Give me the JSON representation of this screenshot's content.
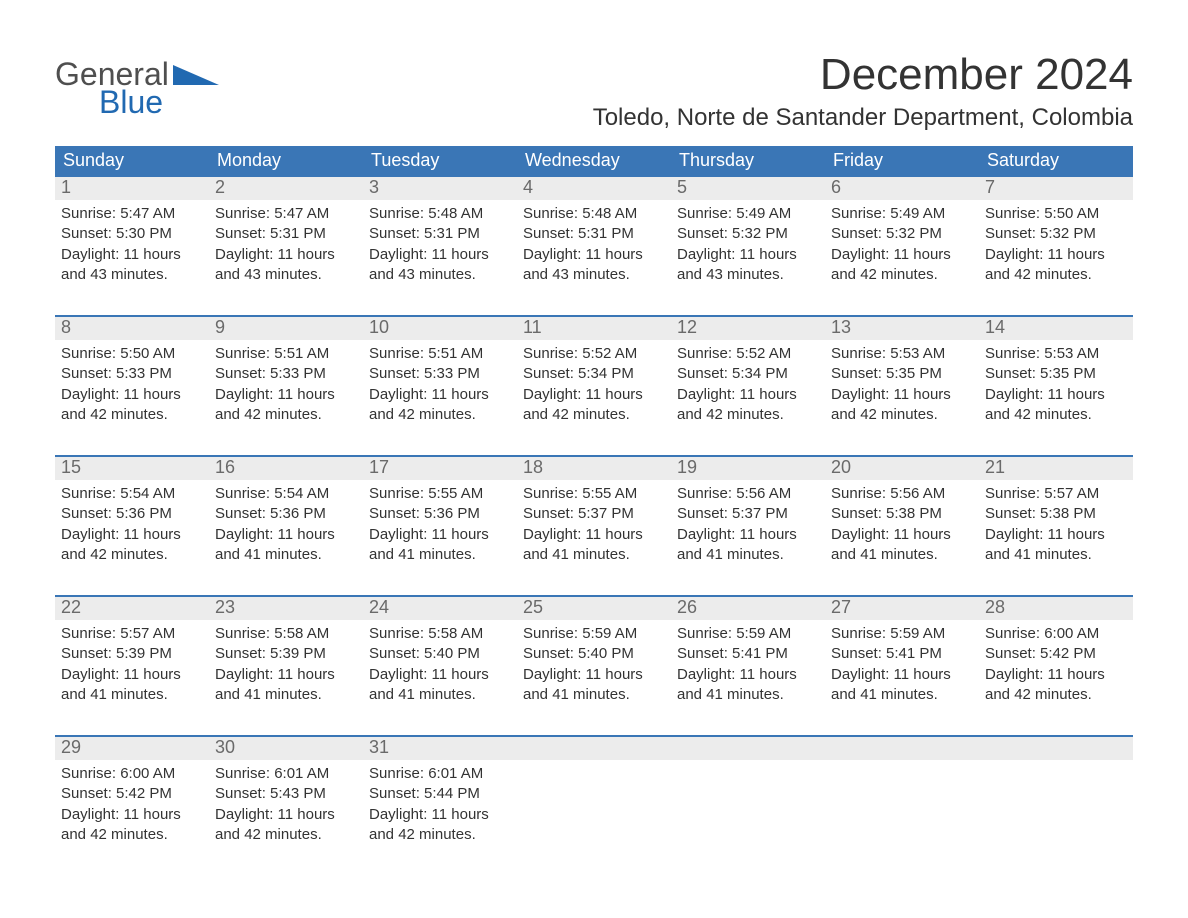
{
  "logo": {
    "text1": "General",
    "text2": "Blue",
    "color_gray": "#4f4f4f",
    "color_blue": "#2169b1"
  },
  "title": "December 2024",
  "location": "Toledo, Norte de Santander Department, Colombia",
  "colors": {
    "header_bg": "#3a76b6",
    "header_text": "#ffffff",
    "daynum_bg": "#ececec",
    "daynum_text": "#6a6a6a",
    "body_text": "#333333",
    "rule": "#3a76b6",
    "page_bg": "#ffffff"
  },
  "fonts": {
    "title_pt": 44,
    "location_pt": 24,
    "dow_pt": 18,
    "daynum_pt": 18,
    "body_pt": 15
  },
  "day_labels": [
    "Sunday",
    "Monday",
    "Tuesday",
    "Wednesday",
    "Thursday",
    "Friday",
    "Saturday"
  ],
  "weeks": [
    [
      {
        "d": "1",
        "sr": "Sunrise: 5:47 AM",
        "ss": "Sunset: 5:30 PM",
        "dl": "Daylight: 11 hours and 43 minutes."
      },
      {
        "d": "2",
        "sr": "Sunrise: 5:47 AM",
        "ss": "Sunset: 5:31 PM",
        "dl": "Daylight: 11 hours and 43 minutes."
      },
      {
        "d": "3",
        "sr": "Sunrise: 5:48 AM",
        "ss": "Sunset: 5:31 PM",
        "dl": "Daylight: 11 hours and 43 minutes."
      },
      {
        "d": "4",
        "sr": "Sunrise: 5:48 AM",
        "ss": "Sunset: 5:31 PM",
        "dl": "Daylight: 11 hours and 43 minutes."
      },
      {
        "d": "5",
        "sr": "Sunrise: 5:49 AM",
        "ss": "Sunset: 5:32 PM",
        "dl": "Daylight: 11 hours and 43 minutes."
      },
      {
        "d": "6",
        "sr": "Sunrise: 5:49 AM",
        "ss": "Sunset: 5:32 PM",
        "dl": "Daylight: 11 hours and 42 minutes."
      },
      {
        "d": "7",
        "sr": "Sunrise: 5:50 AM",
        "ss": "Sunset: 5:32 PM",
        "dl": "Daylight: 11 hours and 42 minutes."
      }
    ],
    [
      {
        "d": "8",
        "sr": "Sunrise: 5:50 AM",
        "ss": "Sunset: 5:33 PM",
        "dl": "Daylight: 11 hours and 42 minutes."
      },
      {
        "d": "9",
        "sr": "Sunrise: 5:51 AM",
        "ss": "Sunset: 5:33 PM",
        "dl": "Daylight: 11 hours and 42 minutes."
      },
      {
        "d": "10",
        "sr": "Sunrise: 5:51 AM",
        "ss": "Sunset: 5:33 PM",
        "dl": "Daylight: 11 hours and 42 minutes."
      },
      {
        "d": "11",
        "sr": "Sunrise: 5:52 AM",
        "ss": "Sunset: 5:34 PM",
        "dl": "Daylight: 11 hours and 42 minutes."
      },
      {
        "d": "12",
        "sr": "Sunrise: 5:52 AM",
        "ss": "Sunset: 5:34 PM",
        "dl": "Daylight: 11 hours and 42 minutes."
      },
      {
        "d": "13",
        "sr": "Sunrise: 5:53 AM",
        "ss": "Sunset: 5:35 PM",
        "dl": "Daylight: 11 hours and 42 minutes."
      },
      {
        "d": "14",
        "sr": "Sunrise: 5:53 AM",
        "ss": "Sunset: 5:35 PM",
        "dl": "Daylight: 11 hours and 42 minutes."
      }
    ],
    [
      {
        "d": "15",
        "sr": "Sunrise: 5:54 AM",
        "ss": "Sunset: 5:36 PM",
        "dl": "Daylight: 11 hours and 42 minutes."
      },
      {
        "d": "16",
        "sr": "Sunrise: 5:54 AM",
        "ss": "Sunset: 5:36 PM",
        "dl": "Daylight: 11 hours and 41 minutes."
      },
      {
        "d": "17",
        "sr": "Sunrise: 5:55 AM",
        "ss": "Sunset: 5:36 PM",
        "dl": "Daylight: 11 hours and 41 minutes."
      },
      {
        "d": "18",
        "sr": "Sunrise: 5:55 AM",
        "ss": "Sunset: 5:37 PM",
        "dl": "Daylight: 11 hours and 41 minutes."
      },
      {
        "d": "19",
        "sr": "Sunrise: 5:56 AM",
        "ss": "Sunset: 5:37 PM",
        "dl": "Daylight: 11 hours and 41 minutes."
      },
      {
        "d": "20",
        "sr": "Sunrise: 5:56 AM",
        "ss": "Sunset: 5:38 PM",
        "dl": "Daylight: 11 hours and 41 minutes."
      },
      {
        "d": "21",
        "sr": "Sunrise: 5:57 AM",
        "ss": "Sunset: 5:38 PM",
        "dl": "Daylight: 11 hours and 41 minutes."
      }
    ],
    [
      {
        "d": "22",
        "sr": "Sunrise: 5:57 AM",
        "ss": "Sunset: 5:39 PM",
        "dl": "Daylight: 11 hours and 41 minutes."
      },
      {
        "d": "23",
        "sr": "Sunrise: 5:58 AM",
        "ss": "Sunset: 5:39 PM",
        "dl": "Daylight: 11 hours and 41 minutes."
      },
      {
        "d": "24",
        "sr": "Sunrise: 5:58 AM",
        "ss": "Sunset: 5:40 PM",
        "dl": "Daylight: 11 hours and 41 minutes."
      },
      {
        "d": "25",
        "sr": "Sunrise: 5:59 AM",
        "ss": "Sunset: 5:40 PM",
        "dl": "Daylight: 11 hours and 41 minutes."
      },
      {
        "d": "26",
        "sr": "Sunrise: 5:59 AM",
        "ss": "Sunset: 5:41 PM",
        "dl": "Daylight: 11 hours and 41 minutes."
      },
      {
        "d": "27",
        "sr": "Sunrise: 5:59 AM",
        "ss": "Sunset: 5:41 PM",
        "dl": "Daylight: 11 hours and 41 minutes."
      },
      {
        "d": "28",
        "sr": "Sunrise: 6:00 AM",
        "ss": "Sunset: 5:42 PM",
        "dl": "Daylight: 11 hours and 42 minutes."
      }
    ],
    [
      {
        "d": "29",
        "sr": "Sunrise: 6:00 AM",
        "ss": "Sunset: 5:42 PM",
        "dl": "Daylight: 11 hours and 42 minutes."
      },
      {
        "d": "30",
        "sr": "Sunrise: 6:01 AM",
        "ss": "Sunset: 5:43 PM",
        "dl": "Daylight: 11 hours and 42 minutes."
      },
      {
        "d": "31",
        "sr": "Sunrise: 6:01 AM",
        "ss": "Sunset: 5:44 PM",
        "dl": "Daylight: 11 hours and 42 minutes."
      },
      null,
      null,
      null,
      null
    ]
  ]
}
